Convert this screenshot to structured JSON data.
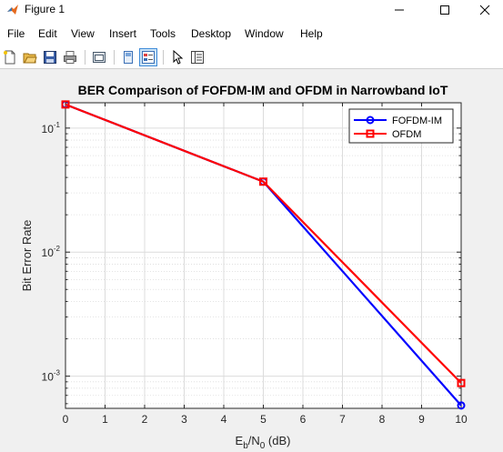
{
  "window": {
    "title": "Figure 1",
    "icon": "matlab-icon"
  },
  "menu": [
    "File",
    "Edit",
    "View",
    "Insert",
    "Tools",
    "Desktop",
    "Window",
    "Help"
  ],
  "toolbar": {
    "icons": [
      "new-figure-icon",
      "open-file-icon",
      "save-icon",
      "print-icon",
      "link-plot-icon",
      "hide-plot-tools-icon",
      "show-plot-tools-icon",
      "edit-plot-icon",
      "property-inspector-icon"
    ]
  },
  "colors": {
    "figure_bg": "#f0f0f0",
    "axes_bg": "#ffffff",
    "grid": "#dcdcdc",
    "series_blue": "#0000ff",
    "series_red": "#ff0000"
  },
  "chart_data": {
    "type": "line",
    "title": "BER Comparison of FOFDM-IM and OFDM in Narrowband IoT",
    "xlabel": {
      "main": "E",
      "sub1": "b",
      "mid": "/N",
      "sub2": "0",
      "tail": " (dB)"
    },
    "ylabel": "Bit Error Rate",
    "xlim": [
      0,
      10
    ],
    "ylim": [
      0.00055,
      0.16
    ],
    "yscale": "log",
    "grid": true,
    "minor_grid": true,
    "xticks": [
      "0",
      "1",
      "2",
      "3",
      "4",
      "5",
      "6",
      "7",
      "8",
      "9",
      "10"
    ],
    "yticks": [
      {
        "value": 0.1,
        "base": "10",
        "exp": "-1"
      },
      {
        "value": 0.01,
        "base": "10",
        "exp": "-2"
      },
      {
        "value": 0.001,
        "base": "10",
        "exp": "-3"
      }
    ],
    "legend_position": "top-right",
    "series": [
      {
        "name": "FOFDM-IM",
        "x": [
          0,
          5,
          10
        ],
        "y": [
          0.155,
          0.037,
          0.00058
        ],
        "color": "#0000ff",
        "marker": "circle"
      },
      {
        "name": "OFDM",
        "x": [
          0,
          5,
          10
        ],
        "y": [
          0.155,
          0.037,
          0.00088
        ],
        "color": "#ff0000",
        "marker": "square"
      }
    ]
  }
}
